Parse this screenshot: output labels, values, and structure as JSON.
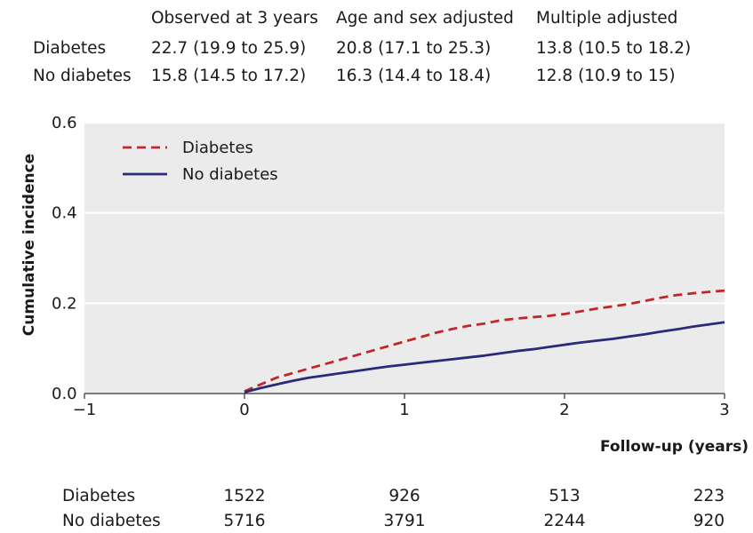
{
  "summary_table": {
    "columns": [
      "Observed at 3 years",
      "Age and sex adjusted",
      "Multiple adjusted"
    ],
    "rows": [
      {
        "label": "Diabetes",
        "cells": [
          "22.7 (19.9 to 25.9)",
          "20.8 (17.1 to 25.3)",
          "13.8 (10.5 to 18.2)"
        ]
      },
      {
        "label": "No diabetes",
        "cells": [
          "15.8 (14.5 to 17.2)",
          "16.3 (14.4 to 18.4)",
          "12.8 (10.9 to 15)"
        ]
      }
    ]
  },
  "chart_data": {
    "type": "line",
    "title": "",
    "xlabel": "Follow-up (years)",
    "ylabel": "Cumulative incidence",
    "xlim": [
      -1,
      3
    ],
    "ylim": [
      0,
      0.6
    ],
    "x_ticks": [
      -1,
      0,
      1,
      2,
      3
    ],
    "x_tick_labels": [
      "−1",
      "0",
      "1",
      "2",
      "3"
    ],
    "y_ticks": [
      0,
      0.2,
      0.4,
      0.6
    ],
    "y_tick_labels": [
      "0.0",
      "0.2",
      "0.4",
      "0.6"
    ],
    "grid": true,
    "legend_position": "top-left",
    "background_color": "#ebebeb",
    "series": [
      {
        "name": "Diabetes",
        "color": "#c0272d",
        "style": "dashed",
        "x": [
          0,
          0.1,
          0.2,
          0.3,
          0.4,
          0.5,
          0.6,
          0.7,
          0.8,
          0.9,
          1.0,
          1.1,
          1.2,
          1.3,
          1.4,
          1.5,
          1.6,
          1.7,
          1.8,
          1.9,
          2.0,
          2.1,
          2.2,
          2.3,
          2.4,
          2.5,
          2.6,
          2.7,
          2.8,
          2.9,
          3.0
        ],
        "y": [
          0.005,
          0.02,
          0.035,
          0.045,
          0.055,
          0.065,
          0.075,
          0.085,
          0.095,
          0.105,
          0.115,
          0.125,
          0.135,
          0.143,
          0.15,
          0.155,
          0.162,
          0.166,
          0.169,
          0.172,
          0.176,
          0.182,
          0.188,
          0.193,
          0.198,
          0.205,
          0.212,
          0.218,
          0.222,
          0.225,
          0.228
        ]
      },
      {
        "name": "No diabetes",
        "color": "#2b2a79",
        "style": "solid",
        "x": [
          0,
          0.1,
          0.2,
          0.3,
          0.4,
          0.5,
          0.6,
          0.7,
          0.8,
          0.9,
          1.0,
          1.1,
          1.2,
          1.3,
          1.4,
          1.5,
          1.6,
          1.7,
          1.8,
          1.9,
          2.0,
          2.1,
          2.2,
          2.3,
          2.4,
          2.5,
          2.6,
          2.7,
          2.8,
          2.9,
          3.0
        ],
        "y": [
          0.003,
          0.012,
          0.02,
          0.028,
          0.035,
          0.04,
          0.045,
          0.05,
          0.055,
          0.06,
          0.064,
          0.068,
          0.072,
          0.076,
          0.08,
          0.084,
          0.089,
          0.094,
          0.098,
          0.103,
          0.108,
          0.113,
          0.117,
          0.121,
          0.126,
          0.131,
          0.137,
          0.142,
          0.148,
          0.153,
          0.158
        ]
      }
    ]
  },
  "risk_table": {
    "times": [
      0,
      1,
      2,
      3
    ],
    "rows": [
      {
        "label": "Diabetes",
        "values": [
          "1522",
          "926",
          "513",
          "223"
        ]
      },
      {
        "label": "No diabetes",
        "values": [
          "5716",
          "3791",
          "2244",
          "920"
        ]
      }
    ]
  }
}
